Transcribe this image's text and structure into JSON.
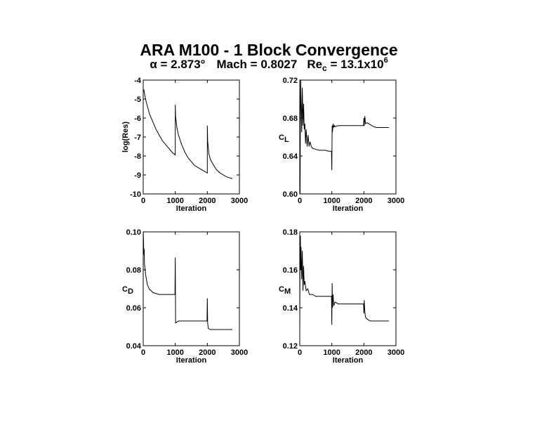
{
  "header": {
    "title": "ARA M100 - 1 Block Convergence",
    "sub_alpha_symbol": "α",
    "sub_alpha_value": " = 2.873°",
    "sub_mach": "Mach = 0.8027",
    "sub_re_main": "Re",
    "sub_re_sub": "c",
    "sub_re_value": " = 13.1x10",
    "sub_re_exp": "6"
  },
  "chart_data": [
    {
      "type": "line",
      "xlabel": "Iteration",
      "ylabel": "log(Res)",
      "ylabel_main": "log(Res)",
      "ylabel_sub": "",
      "xlim": [
        0,
        3000
      ],
      "ylim": [
        -10,
        -4
      ],
      "xticks": [
        0,
        1000,
        2000,
        3000
      ],
      "xtick_labels": [
        "0",
        "1000",
        "2000",
        "3000"
      ],
      "yticks": [
        -10,
        -9,
        -8,
        -7,
        -6,
        -5,
        -4
      ],
      "ytick_labels": [
        "-10",
        "-9",
        "-8",
        "-7",
        "-6",
        "-5",
        "-4"
      ],
      "x": [
        0,
        20,
        50,
        100,
        150,
        200,
        300,
        400,
        500,
        600,
        700,
        800,
        900,
        1000,
        1000,
        1010,
        1050,
        1100,
        1200,
        1300,
        1400,
        1500,
        1600,
        1700,
        1800,
        1900,
        2000,
        2000,
        2010,
        2050,
        2100,
        2200,
        2300,
        2400,
        2500,
        2600,
        2700,
        2780
      ],
      "y": [
        -4.6,
        -4.5,
        -4.8,
        -5.2,
        -5.5,
        -5.8,
        -6.2,
        -6.6,
        -6.9,
        -7.2,
        -7.4,
        -7.6,
        -7.8,
        -7.95,
        -5.3,
        -5.9,
        -6.5,
        -6.9,
        -7.4,
        -7.8,
        -8.1,
        -8.3,
        -8.5,
        -8.6,
        -8.7,
        -8.8,
        -8.9,
        -6.4,
        -7.2,
        -7.9,
        -8.2,
        -8.5,
        -8.75,
        -8.9,
        -9.0,
        -9.1,
        -9.15,
        -9.2
      ]
    },
    {
      "type": "line",
      "xlabel": "Iteration",
      "ylabel": "CL",
      "ylabel_main": "C",
      "ylabel_sub": "L",
      "xlim": [
        0,
        3000
      ],
      "ylim": [
        0.6,
        0.72
      ],
      "xticks": [
        0,
        1000,
        2000,
        3000
      ],
      "xtick_labels": [
        "0",
        "1000",
        "2000",
        "3000"
      ],
      "yticks": [
        0.6,
        0.64,
        0.68,
        0.72
      ],
      "ytick_labels": [
        "0.60",
        "0.64",
        "0.68",
        "0.72"
      ],
      "x": [
        0,
        10,
        20,
        30,
        40,
        60,
        80,
        100,
        120,
        140,
        160,
        180,
        200,
        230,
        260,
        290,
        320,
        360,
        400,
        500,
        600,
        700,
        800,
        900,
        990,
        1000,
        1010,
        1020,
        1040,
        1060,
        1080,
        1100,
        1200,
        1400,
        1600,
        1800,
        1990,
        2000,
        2010,
        2030,
        2050,
        2100,
        2200,
        2300,
        2400,
        2500,
        2600,
        2700,
        2780
      ],
      "y": [
        0.6,
        0.6,
        0.685,
        0.72,
        0.7,
        0.665,
        0.712,
        0.672,
        0.695,
        0.668,
        0.674,
        0.653,
        0.668,
        0.65,
        0.662,
        0.65,
        0.655,
        0.65,
        0.648,
        0.647,
        0.646,
        0.646,
        0.646,
        0.645,
        0.645,
        0.625,
        0.672,
        0.665,
        0.674,
        0.67,
        0.672,
        0.671,
        0.672,
        0.672,
        0.672,
        0.672,
        0.672,
        0.68,
        0.672,
        0.682,
        0.674,
        0.675,
        0.673,
        0.671,
        0.67,
        0.67,
        0.67,
        0.67,
        0.67
      ]
    },
    {
      "type": "line",
      "xlabel": "Iteration",
      "ylabel": "CD",
      "ylabel_main": "C",
      "ylabel_sub": "D",
      "xlim": [
        0,
        3000
      ],
      "ylim": [
        0.04,
        0.1
      ],
      "xticks": [
        0,
        1000,
        2000,
        3000
      ],
      "xtick_labels": [
        "0",
        "1000",
        "2000",
        "3000"
      ],
      "yticks": [
        0.04,
        0.06,
        0.08,
        0.1
      ],
      "ytick_labels": [
        "0.04",
        "0.06",
        "0.08",
        "0.10"
      ],
      "x": [
        0,
        10,
        20,
        30,
        40,
        60,
        80,
        100,
        130,
        160,
        200,
        250,
        300,
        400,
        500,
        600,
        700,
        800,
        900,
        990,
        1000,
        1010,
        1020,
        1050,
        1100,
        1200,
        1400,
        1600,
        1800,
        1990,
        2000,
        2010,
        2030,
        2100,
        2300,
        2500,
        2780
      ],
      "y": [
        0.1,
        0.095,
        0.088,
        0.091,
        0.083,
        0.08,
        0.077,
        0.075,
        0.072,
        0.071,
        0.0695,
        0.069,
        0.068,
        0.0675,
        0.067,
        0.067,
        0.067,
        0.067,
        0.067,
        0.067,
        0.0865,
        0.052,
        0.052,
        0.0525,
        0.053,
        0.053,
        0.053,
        0.053,
        0.053,
        0.053,
        0.065,
        0.052,
        0.049,
        0.0485,
        0.0485,
        0.0485,
        0.0485
      ]
    },
    {
      "type": "line",
      "xlabel": "Iteration",
      "ylabel": "CM",
      "ylabel_main": "C",
      "ylabel_sub": "M",
      "xlim": [
        0,
        3000
      ],
      "ylim": [
        0.12,
        0.18
      ],
      "xticks": [
        0,
        1000,
        2000,
        3000
      ],
      "xtick_labels": [
        "0",
        "1000",
        "2000",
        "3000"
      ],
      "yticks": [
        0.12,
        0.14,
        0.16,
        0.18
      ],
      "ytick_labels": [
        "0.12",
        "0.14",
        "0.16",
        "0.18"
      ],
      "x": [
        0,
        10,
        20,
        30,
        40,
        60,
        80,
        100,
        120,
        140,
        160,
        200,
        250,
        300,
        400,
        500,
        600,
        700,
        800,
        900,
        990,
        1000,
        1010,
        1020,
        1040,
        1060,
        1080,
        1100,
        1200,
        1400,
        1600,
        1800,
        1990,
        2000,
        2010,
        2030,
        2050,
        2100,
        2200,
        2400,
        2600,
        2780
      ],
      "y": [
        0.13,
        0.175,
        0.178,
        0.16,
        0.172,
        0.155,
        0.17,
        0.149,
        0.162,
        0.152,
        0.154,
        0.149,
        0.15,
        0.147,
        0.147,
        0.146,
        0.146,
        0.146,
        0.146,
        0.146,
        0.146,
        0.131,
        0.153,
        0.14,
        0.147,
        0.141,
        0.142,
        0.143,
        0.142,
        0.142,
        0.142,
        0.142,
        0.142,
        0.137,
        0.144,
        0.138,
        0.135,
        0.134,
        0.133,
        0.133,
        0.133,
        0.133
      ]
    }
  ]
}
